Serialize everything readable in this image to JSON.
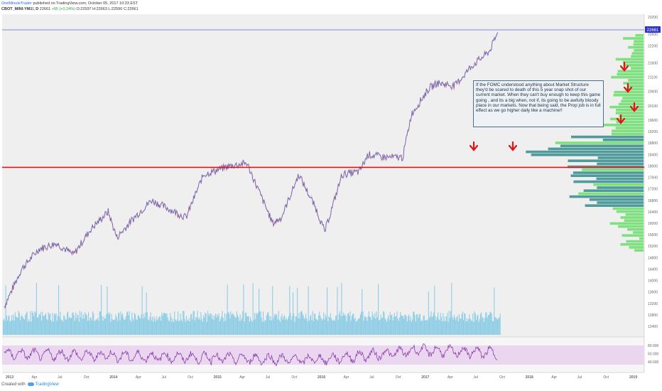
{
  "header": {
    "author": "OneMinuteTrader",
    "published": "published on TradingView.com, October 05, 2017 10:33 EST",
    "symbol": "CBOT_MINI:YM1!, D",
    "last": "22661",
    "change": "+55 (+0.24%)",
    "ohlc": "O:22597 H:22663 L:22590 C:22661"
  },
  "annotation": "If the FOMC understood anything about Market Structure they'd be scared to death of this 5 year snap shot of our current market. When they can't buy enough to keep this game going , and its a big when, not if, its going to be awfully bloody place in our markets. Now that being said, the Prop job is in full effect as we go higher daily like a machine!!",
  "footer": {
    "created": "Created with",
    "brand": "TradingView"
  },
  "colors": {
    "background": "#efefef",
    "candles": "#6b6fc4",
    "resistance": "#e01414",
    "rsi": "#8a3fae",
    "rsi_band": "#ead6ee",
    "volume": "#6cc2e2",
    "profile_green": "#7ee07e",
    "profile_teal": "#4f9a9a",
    "arrows": "#e01414"
  },
  "chart_data": [
    {
      "type": "line",
      "title": "CBOT_MINI:YM1!, D",
      "x": [
        "2013-01",
        "2013-03",
        "2013-05",
        "2013-07",
        "2013-09",
        "2013-11",
        "2014-01",
        "2014-02",
        "2014-04",
        "2014-06",
        "2014-08",
        "2014-10",
        "2014-12",
        "2015-03",
        "2015-05",
        "2015-08",
        "2015-09",
        "2015-11",
        "2016-01",
        "2016-02",
        "2016-04",
        "2016-06",
        "2016-07",
        "2016-09",
        "2016-11",
        "2016-12",
        "2017-02",
        "2017-03",
        "2017-05",
        "2017-07",
        "2017-09",
        "2017-10"
      ],
      "y": [
        13100,
        14400,
        15100,
        15300,
        14900,
        15800,
        16400,
        15500,
        16200,
        16800,
        16500,
        16200,
        17700,
        18000,
        18100,
        16000,
        16200,
        17700,
        16500,
        15700,
        17700,
        17800,
        18400,
        18300,
        18300,
        19800,
        20700,
        20900,
        20800,
        21500,
        22000,
        22661
      ],
      "last_value": 22661,
      "resistance_level": 17950,
      "y_axis_ticks": [
        23200,
        22600,
        22200,
        21600,
        21100,
        20600,
        20100,
        19600,
        19200,
        18800,
        18400,
        18000,
        17600,
        17200,
        16800,
        16400,
        16000,
        15600,
        15200,
        14800,
        14400,
        14000,
        13600,
        13200,
        12800,
        12400
      ],
      "x_axis_ticks": [
        "2013",
        "Apr",
        "Jul",
        "Oct",
        "2014",
        "Apr",
        "Jul",
        "Oct",
        "2015",
        "Apr",
        "Jul",
        "Oct",
        "2016",
        "Apr",
        "Jul",
        "Oct",
        "2017",
        "Apr",
        "Jul",
        "Oct",
        "2018",
        "Apr",
        "Jul",
        "Oct",
        "2019"
      ],
      "volume_profile": {
        "green_side": "above_resistance",
        "teal_side": "around_resistance"
      }
    },
    {
      "type": "line",
      "title": "",
      "y_axis_ticks": [
        "80.000",
        "60.000",
        "40.000"
      ],
      "band": [
        30,
        70
      ],
      "x": [
        "2013-01",
        "2014-01",
        "2015-01",
        "2016-01",
        "2017-01",
        "2017-10"
      ],
      "y": [
        60,
        55,
        50,
        45,
        68,
        62
      ]
    }
  ]
}
